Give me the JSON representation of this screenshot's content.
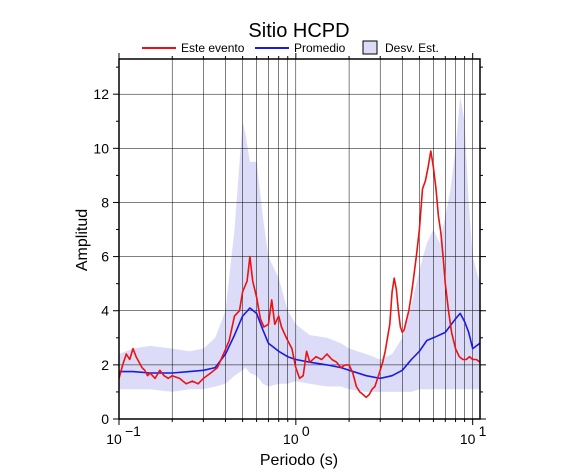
{
  "chart_data": {
    "type": "line",
    "title": "Sitio HCPD",
    "xlabel": "Periodo (s)",
    "ylabel": "Amplitud",
    "x_scale": "log",
    "xlim": [
      0.1,
      11
    ],
    "ylim": [
      0,
      13.3
    ],
    "grid": true,
    "legend_position": "top",
    "xticks": [
      {
        "value": 0.1,
        "base": "10",
        "exp": "−1"
      },
      {
        "value": 1,
        "base": "10",
        "exp": "0"
      },
      {
        "value": 10,
        "base": "10",
        "exp": "1"
      }
    ],
    "yticks": [
      0,
      2,
      4,
      6,
      8,
      10,
      12
    ],
    "series": [
      {
        "name": "Este evento",
        "color": "#ee1111",
        "x": [
          0.1,
          0.105,
          0.11,
          0.115,
          0.12,
          0.125,
          0.13,
          0.135,
          0.14,
          0.145,
          0.15,
          0.16,
          0.17,
          0.18,
          0.19,
          0.2,
          0.22,
          0.24,
          0.26,
          0.28,
          0.3,
          0.33,
          0.36,
          0.39,
          0.42,
          0.45,
          0.48,
          0.5,
          0.53,
          0.55,
          0.57,
          0.6,
          0.63,
          0.66,
          0.7,
          0.73,
          0.76,
          0.8,
          0.83,
          0.87,
          0.9,
          0.95,
          1.0,
          1.05,
          1.1,
          1.15,
          1.2,
          1.3,
          1.4,
          1.5,
          1.6,
          1.7,
          1.8,
          1.9,
          2.0,
          2.1,
          2.2,
          2.3,
          2.4,
          2.5,
          2.6,
          2.7,
          2.8,
          2.9,
          3.0,
          3.1,
          3.2,
          3.3,
          3.4,
          3.5,
          3.6,
          3.7,
          3.8,
          3.9,
          4.0,
          4.1,
          4.2,
          4.35,
          4.5,
          4.65,
          4.8,
          5.0,
          5.2,
          5.4,
          5.6,
          5.8,
          6.0,
          6.2,
          6.4,
          6.6,
          6.8,
          7.0,
          7.3,
          7.6,
          8.0,
          8.4,
          8.8,
          9.2,
          9.6,
          10.0,
          10.5,
          11.0
        ],
        "values": [
          1.5,
          2.0,
          2.4,
          2.2,
          2.6,
          2.3,
          2.1,
          1.9,
          1.8,
          1.6,
          1.7,
          1.5,
          1.8,
          1.6,
          1.5,
          1.6,
          1.5,
          1.3,
          1.4,
          1.3,
          1.5,
          1.7,
          1.9,
          2.4,
          2.9,
          3.8,
          4.0,
          4.7,
          5.1,
          6.0,
          5.1,
          4.5,
          3.7,
          3.4,
          3.5,
          4.4,
          3.5,
          3.8,
          3.4,
          3.1,
          2.9,
          2.6,
          1.9,
          1.5,
          1.6,
          2.5,
          2.1,
          2.3,
          2.2,
          2.4,
          2.2,
          2.1,
          1.9,
          2.0,
          2.0,
          1.7,
          1.2,
          1.0,
          0.9,
          0.8,
          0.9,
          1.1,
          1.2,
          1.5,
          1.8,
          2.1,
          2.5,
          3.0,
          3.5,
          4.7,
          5.2,
          4.8,
          4.0,
          3.4,
          3.2,
          3.3,
          3.6,
          4.0,
          4.6,
          5.3,
          6.0,
          7.0,
          8.5,
          8.8,
          9.3,
          9.9,
          9.3,
          8.5,
          7.5,
          6.9,
          6.0,
          5.0,
          4.0,
          3.2,
          2.6,
          2.3,
          2.2,
          2.2,
          2.3,
          2.2,
          2.2,
          2.1
        ]
      },
      {
        "name": "Promedio",
        "color": "#1a1ae6",
        "x": [
          0.1,
          0.12,
          0.15,
          0.2,
          0.25,
          0.3,
          0.35,
          0.4,
          0.45,
          0.5,
          0.55,
          0.6,
          0.65,
          0.7,
          0.8,
          0.9,
          1.0,
          1.2,
          1.5,
          1.8,
          2.0,
          2.5,
          3.0,
          3.5,
          4.0,
          4.5,
          5.0,
          5.5,
          6.0,
          7.0,
          8.0,
          8.5,
          9.0,
          9.5,
          10.0,
          11.0
        ],
        "values": [
          1.75,
          1.75,
          1.7,
          1.7,
          1.75,
          1.8,
          1.9,
          2.4,
          3.1,
          3.8,
          4.1,
          3.9,
          3.3,
          2.8,
          2.5,
          2.3,
          2.2,
          2.1,
          2.0,
          1.9,
          1.8,
          1.6,
          1.5,
          1.6,
          1.8,
          2.2,
          2.5,
          2.9,
          3.0,
          3.2,
          3.7,
          3.9,
          3.6,
          3.2,
          2.6,
          2.8
        ]
      },
      {
        "name": "Desv. Est.",
        "color": "#dcdcf8",
        "x": [
          0.1,
          0.12,
          0.15,
          0.2,
          0.25,
          0.3,
          0.35,
          0.4,
          0.45,
          0.5,
          0.52,
          0.55,
          0.6,
          0.65,
          0.7,
          0.8,
          0.9,
          1.0,
          1.2,
          1.5,
          1.8,
          2.0,
          2.5,
          3.0,
          3.5,
          4.0,
          4.5,
          5.0,
          5.5,
          6.0,
          6.5,
          7.0,
          7.5,
          8.0,
          8.5,
          9.0,
          9.5,
          10.0,
          11.0
        ],
        "upper": [
          2.4,
          2.6,
          2.7,
          2.6,
          2.5,
          2.6,
          3.0,
          4.0,
          7.0,
          11.0,
          10.5,
          9.5,
          9.5,
          7.5,
          6.0,
          5.2,
          4.0,
          3.5,
          3.1,
          3.0,
          2.8,
          2.6,
          2.4,
          2.2,
          2.4,
          3.0,
          4.2,
          5.5,
          6.5,
          7.0,
          6.5,
          7.5,
          8.5,
          10.0,
          11.9,
          11.0,
          8.0,
          6.0,
          5.0
        ],
        "lower": [
          1.1,
          1.1,
          1.1,
          1.0,
          1.1,
          1.1,
          1.2,
          1.3,
          1.6,
          1.8,
          1.9,
          1.7,
          1.6,
          1.3,
          1.2,
          1.3,
          1.3,
          1.4,
          1.3,
          1.2,
          1.2,
          1.1,
          1.0,
          1.0,
          1.0,
          1.0,
          1.0,
          1.1,
          1.1,
          1.1,
          1.1,
          1.1,
          1.1,
          1.1,
          1.1,
          1.1,
          1.1,
          1.1,
          1.1
        ]
      }
    ]
  }
}
